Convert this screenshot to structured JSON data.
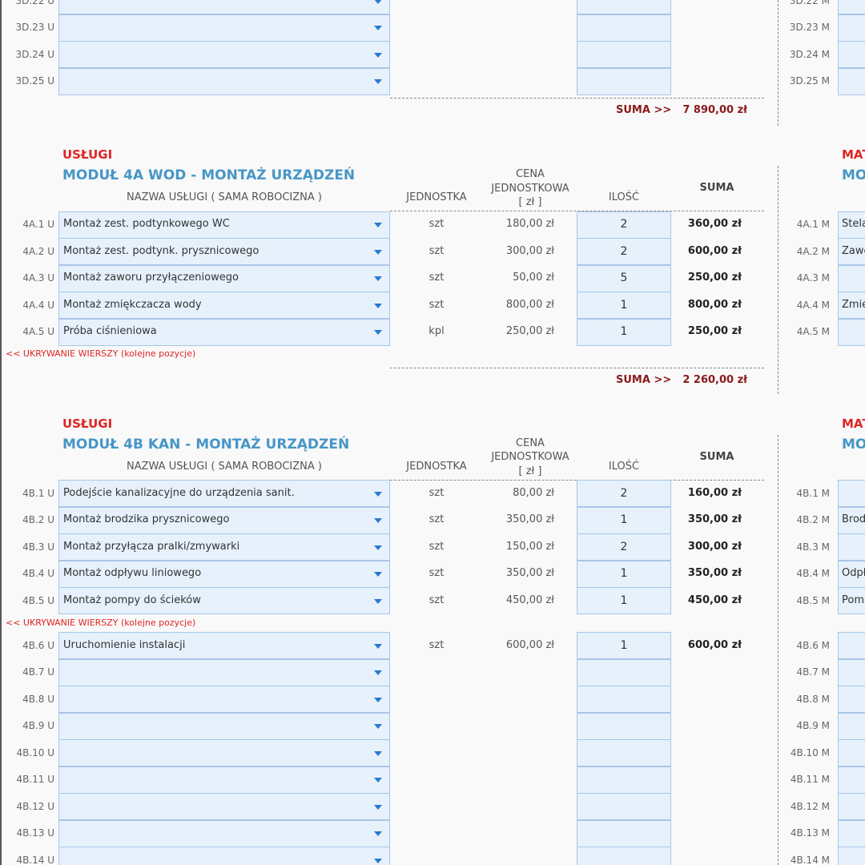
{
  "top": {
    "rows": [
      {
        "label": "3D.22 U"
      },
      {
        "label": "3D.23 U"
      },
      {
        "label": "3D.24 U"
      },
      {
        "label": "3D.25 U"
      }
    ],
    "mat_rows": [
      {
        "label": "3D.22 M"
      },
      {
        "label": "3D.23 M"
      },
      {
        "label": "3D.24 M"
      },
      {
        "label": "3D.25 M"
      }
    ],
    "sum_label": "SUMA >>",
    "sum_value": "7 890,00 zł"
  },
  "modules": [
    {
      "category": "USŁUGI",
      "title": "MODUŁ 4A WOD - MONTAŻ URZĄDZEŃ",
      "headers": {
        "name": "NAZWA USŁUGI ( SAMA ROBOCIZNA )",
        "unit": "JEDNOSTKA",
        "price": [
          "CENA",
          "JEDNOSTKOWA",
          "[ zł ]"
        ],
        "qty": "ILOŚĆ",
        "sum": "SUMA"
      },
      "rows": [
        {
          "label": "4A.1 U",
          "name": "Montaż zest. podtynkowego WC",
          "unit": "szt",
          "price": "180,00 zł",
          "qty": "2",
          "sum": "360,00 zł"
        },
        {
          "label": "4A.2 U",
          "name": "Montaż zest. podtynk. prysznicowego",
          "unit": "szt",
          "price": "300,00 zł",
          "qty": "2",
          "sum": "600,00 zł"
        },
        {
          "label": "4A.3 U",
          "name": "Montaż zaworu przyłączeniowego",
          "unit": "szt",
          "price": "50,00 zł",
          "qty": "5",
          "sum": "250,00 zł"
        },
        {
          "label": "4A.4 U",
          "name": "Montaż zmiękczacza wody",
          "unit": "szt",
          "price": "800,00 zł",
          "qty": "1",
          "sum": "800,00 zł"
        },
        {
          "label": "4A.5 U",
          "name": "Próba ciśnieniowa",
          "unit": "kpl",
          "price": "250,00 zł",
          "qty": "1",
          "sum": "250,00 zł"
        }
      ],
      "hide_note": "<< UKRYWANIE WIERSZY (kolejne pozycje)",
      "sum_label": "SUMA >>",
      "sum_value": "2 260,00 zł",
      "mat_category": "MAT",
      "mat_title": "MO",
      "mat_rows": [
        {
          "label": "4A.1 M",
          "name": "Stela"
        },
        {
          "label": "4A.2 M",
          "name": "Zawo"
        },
        {
          "label": "4A.3 M"
        },
        {
          "label": "4A.4 M",
          "name": "Zmię"
        },
        {
          "label": "4A.5 M"
        }
      ]
    },
    {
      "category": "USŁUGI",
      "title": "MODUŁ 4B KAN - MONTAŻ URZĄDZEŃ",
      "headers": {
        "name": "NAZWA USŁUGI ( SAMA ROBOCIZNA )",
        "unit": "JEDNOSTKA",
        "price": [
          "CENA",
          "JEDNOSTKOWA",
          "[ zł ]"
        ],
        "qty": "ILOŚĆ",
        "sum": "SUMA"
      },
      "rows": [
        {
          "label": "4B.1 U",
          "name": "Podejście kanalizacyjne do urządzenia sanit.",
          "unit": "szt",
          "price": "80,00 zł",
          "qty": "2",
          "sum": "160,00 zł"
        },
        {
          "label": "4B.2 U",
          "name": "Montaż brodzika prysznicowego",
          "unit": "szt",
          "price": "350,00 zł",
          "qty": "1",
          "sum": "350,00 zł"
        },
        {
          "label": "4B.3 U",
          "name": "Montaż przyłącza pralki/zmywarki",
          "unit": "szt",
          "price": "150,00 zł",
          "qty": "2",
          "sum": "300,00 zł"
        },
        {
          "label": "4B.4 U",
          "name": "Montaż odpływu liniowego",
          "unit": "szt",
          "price": "350,00 zł",
          "qty": "1",
          "sum": "350,00 zł"
        },
        {
          "label": "4B.5 U",
          "name": "Montaż pompy do ścieków",
          "unit": "szt",
          "price": "450,00 zł",
          "qty": "1",
          "sum": "450,00 zł"
        }
      ],
      "hide_note": "<< UKRYWANIE WIERSZY (kolejne pozycje)",
      "rows_after": [
        {
          "label": "4B.6 U",
          "name": "Uruchomienie instalacji",
          "unit": "szt",
          "price": "600,00 zł",
          "qty": "1",
          "sum": "600,00 zł"
        },
        {
          "label": "4B.7 U"
        },
        {
          "label": "4B.8 U"
        },
        {
          "label": "4B.9 U"
        },
        {
          "label": "4B.10 U"
        },
        {
          "label": "4B.11 U"
        },
        {
          "label": "4B.12 U"
        },
        {
          "label": "4B.13 U"
        },
        {
          "label": "4B.14 U"
        }
      ],
      "mat_category": "MAT",
      "mat_title": "MO",
      "mat_rows": [
        {
          "label": "4B.1 M"
        },
        {
          "label": "4B.2 M",
          "name": "Brod"
        },
        {
          "label": "4B.3 M"
        },
        {
          "label": "4B.4 M",
          "name": "Odpł"
        },
        {
          "label": "4B.5 M",
          "name": "Pom"
        },
        {
          "label": "4B.6 M"
        },
        {
          "label": "4B.7 M"
        },
        {
          "label": "4B.8 M"
        },
        {
          "label": "4B.9 M"
        },
        {
          "label": "4B.10 M"
        },
        {
          "label": "4B.11 M"
        },
        {
          "label": "4B.12 M"
        },
        {
          "label": "4B.13 M"
        },
        {
          "label": "4B.14 M"
        }
      ]
    }
  ]
}
